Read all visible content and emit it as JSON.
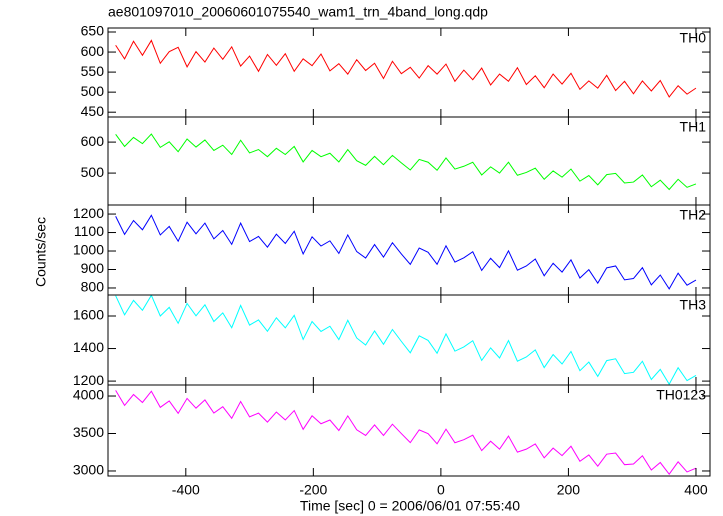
{
  "title": "ae801097010_20060601075540_wam1_trn_4band_long.qdp",
  "ylabel": "Counts/sec",
  "xlabel": "Time [sec] 0 = 2006/06/01 07:55:40",
  "chart_data": [
    {
      "type": "line",
      "xlim": [
        -522,
        422
      ],
      "xticks": [
        -400,
        -200,
        0,
        200,
        400
      ],
      "ylim": [
        438,
        660
      ],
      "yticks": [
        450,
        500,
        550,
        600,
        650
      ],
      "x": [
        -510,
        -496,
        -482,
        -468,
        -454,
        -440,
        -426,
        -412,
        -398,
        -384,
        -370,
        -356,
        -342,
        -328,
        -314,
        -300,
        -286,
        -272,
        -258,
        -244,
        -230,
        -216,
        -202,
        -188,
        -174,
        -160,
        -146,
        -132,
        -118,
        -104,
        -90,
        -76,
        -62,
        -48,
        -34,
        -20,
        -6,
        8,
        22,
        36,
        50,
        64,
        78,
        92,
        106,
        120,
        134,
        148,
        162,
        176,
        190,
        204,
        218,
        232,
        246,
        260,
        274,
        288,
        302,
        316,
        330,
        344,
        358,
        372,
        386,
        400
      ],
      "series": [
        {
          "name": "TH0",
          "color": "#ff0000",
          "values": [
            617,
            583,
            627,
            592,
            629,
            572,
            601,
            612,
            563,
            601,
            575,
            610,
            582,
            613,
            565,
            590,
            552,
            594,
            567,
            596,
            552,
            583,
            566,
            595,
            553,
            571,
            545,
            581,
            554,
            572,
            534,
            577,
            546,
            562,
            535,
            566,
            545,
            570,
            527,
            555,
            531,
            560,
            518,
            545,
            527,
            561,
            519,
            541,
            511,
            545,
            520,
            547,
            507,
            528,
            510,
            542,
            504,
            527,
            496,
            528,
            503,
            529,
            488,
            516,
            495,
            510
          ]
        }
      ]
    },
    {
      "type": "line",
      "xlim": [
        -522,
        422
      ],
      "xticks": [
        -400,
        -200,
        0,
        200,
        400
      ],
      "ylim": [
        397,
        681
      ],
      "yticks": [
        500,
        600
      ],
      "x": [
        -510,
        -496,
        -482,
        -468,
        -454,
        -440,
        -426,
        -412,
        -398,
        -384,
        -370,
        -356,
        -342,
        -328,
        -314,
        -300,
        -286,
        -272,
        -258,
        -244,
        -230,
        -216,
        -202,
        -188,
        -174,
        -160,
        -146,
        -132,
        -118,
        -104,
        -90,
        -76,
        -62,
        -48,
        -34,
        -20,
        -6,
        8,
        22,
        36,
        50,
        64,
        78,
        92,
        106,
        120,
        134,
        148,
        162,
        176,
        190,
        204,
        218,
        232,
        246,
        260,
        274,
        288,
        302,
        316,
        330,
        344,
        358,
        372,
        386,
        400
      ],
      "series": [
        {
          "name": "TH1",
          "color": "#00ff00",
          "values": [
            625,
            586,
            615,
            595,
            626,
            583,
            601,
            569,
            610,
            584,
            607,
            573,
            590,
            560,
            606,
            565,
            576,
            553,
            580,
            560,
            586,
            536,
            573,
            553,
            564,
            536,
            576,
            540,
            525,
            554,
            527,
            557,
            533,
            510,
            544,
            535,
            509,
            549,
            513,
            522,
            535,
            494,
            520,
            500,
            535,
            493,
            502,
            516,
            480,
            507,
            487,
            513,
            474,
            492,
            462,
            495,
            499,
            468,
            471,
            494,
            456,
            477,
            447,
            480,
            454,
            465
          ]
        }
      ]
    },
    {
      "type": "line",
      "xlim": [
        -522,
        422
      ],
      "xticks": [
        -400,
        -200,
        0,
        200,
        400
      ],
      "ylim": [
        762,
        1249
      ],
      "yticks": [
        800,
        900,
        1000,
        1100,
        1200
      ],
      "x": [
        -510,
        -496,
        -482,
        -468,
        -454,
        -440,
        -426,
        -412,
        -398,
        -384,
        -370,
        -356,
        -342,
        -328,
        -314,
        -300,
        -286,
        -272,
        -258,
        -244,
        -230,
        -216,
        -202,
        -188,
        -174,
        -160,
        -146,
        -132,
        -118,
        -104,
        -90,
        -76,
        -62,
        -48,
        -34,
        -20,
        -6,
        8,
        22,
        36,
        50,
        64,
        78,
        92,
        106,
        120,
        134,
        148,
        162,
        176,
        190,
        204,
        218,
        232,
        246,
        260,
        274,
        288,
        302,
        316,
        330,
        344,
        358,
        372,
        386,
        400
      ],
      "series": [
        {
          "name": "TH2",
          "color": "#0000ff",
          "values": [
            1188,
            1090,
            1165,
            1115,
            1193,
            1087,
            1133,
            1053,
            1156,
            1093,
            1151,
            1066,
            1111,
            1036,
            1151,
            1051,
            1079,
            1021,
            1091,
            1041,
            1107,
            984,
            1077,
            1027,
            1055,
            987,
            1087,
            997,
            962,
            1035,
            967,
            1045,
            984,
            928,
            1016,
            993,
            928,
            1028,
            940,
            963,
            996,
            895,
            961,
            910,
            1001,
            896,
            919,
            957,
            866,
            934,
            886,
            952,
            854,
            899,
            826,
            909,
            919,
            844,
            851,
            910,
            817,
            870,
            795,
            880,
            815,
            843
          ]
        }
      ]
    },
    {
      "type": "line",
      "xlim": [
        -522,
        422
      ],
      "xticks": [
        -400,
        -200,
        0,
        200,
        400
      ],
      "ylim": [
        1176,
        1729
      ],
      "yticks": [
        1200,
        1400,
        1600
      ],
      "x": [
        -510,
        -496,
        -482,
        -468,
        -454,
        -440,
        -426,
        -412,
        -398,
        -384,
        -370,
        -356,
        -342,
        -328,
        -314,
        -300,
        -286,
        -272,
        -258,
        -244,
        -230,
        -216,
        -202,
        -188,
        -174,
        -160,
        -146,
        -132,
        -118,
        -104,
        -90,
        -76,
        -62,
        -48,
        -34,
        -20,
        -6,
        8,
        22,
        36,
        50,
        64,
        78,
        92,
        106,
        120,
        134,
        148,
        162,
        176,
        190,
        204,
        218,
        232,
        246,
        260,
        274,
        288,
        302,
        316,
        330,
        344,
        358,
        372,
        386,
        400
      ],
      "series": [
        {
          "name": "TH3",
          "color": "#00ffff",
          "values": [
            1725,
            1607,
            1696,
            1635,
            1727,
            1600,
            1653,
            1555,
            1677,
            1601,
            1669,
            1566,
            1619,
            1528,
            1665,
            1544,
            1576,
            1506,
            1589,
            1527,
            1604,
            1456,
            1566,
            1505,
            1537,
            1455,
            1574,
            1465,
            1422,
            1508,
            1426,
            1517,
            1444,
            1374,
            1478,
            1450,
            1371,
            1490,
            1384,
            1410,
            1448,
            1327,
            1404,
            1342,
            1449,
            1322,
            1348,
            1392,
            1283,
            1363,
            1305,
            1382,
            1264,
            1317,
            1229,
            1326,
            1337,
            1246,
            1254,
            1322,
            1210,
            1272,
            1181,
            1282,
            1203,
            1235
          ]
        }
      ]
    },
    {
      "type": "line",
      "xlim": [
        -522,
        422
      ],
      "xticks": [
        -400,
        -200,
        0,
        200,
        400
      ],
      "ylim": [
        2933,
        4147
      ],
      "yticks": [
        3000,
        3500,
        4000
      ],
      "x": [
        -510,
        -496,
        -482,
        -468,
        -454,
        -440,
        -426,
        -412,
        -398,
        -384,
        -370,
        -356,
        -342,
        -328,
        -314,
        -300,
        -286,
        -272,
        -258,
        -244,
        -230,
        -216,
        -202,
        -188,
        -174,
        -160,
        -146,
        -132,
        -118,
        -104,
        -90,
        -76,
        -62,
        -48,
        -34,
        -20,
        -6,
        8,
        22,
        36,
        50,
        64,
        78,
        92,
        106,
        120,
        134,
        148,
        162,
        176,
        190,
        204,
        218,
        232,
        246,
        260,
        274,
        288,
        302,
        316,
        330,
        344,
        358,
        372,
        386,
        400
      ],
      "series": [
        {
          "name": "TH0123",
          "color": "#ff00ff",
          "values": [
            4075,
            3875,
            4020,
            3914,
            4064,
            3849,
            3934,
            3769,
            3968,
            3838,
            3948,
            3773,
            3858,
            3702,
            3927,
            3722,
            3772,
            3652,
            3786,
            3681,
            3806,
            3556,
            3736,
            3630,
            3680,
            3540,
            3735,
            3550,
            3474,
            3614,
            3474,
            3624,
            3499,
            3378,
            3548,
            3498,
            3363,
            3558,
            3377,
            3417,
            3477,
            3272,
            3397,
            3291,
            3466,
            3251,
            3291,
            3361,
            3175,
            3305,
            3205,
            3330,
            3130,
            3214,
            3064,
            3224,
            3239,
            3084,
            3093,
            3203,
            3013,
            3113,
            2958,
            3122,
            2987,
            3037
          ]
        }
      ]
    }
  ]
}
